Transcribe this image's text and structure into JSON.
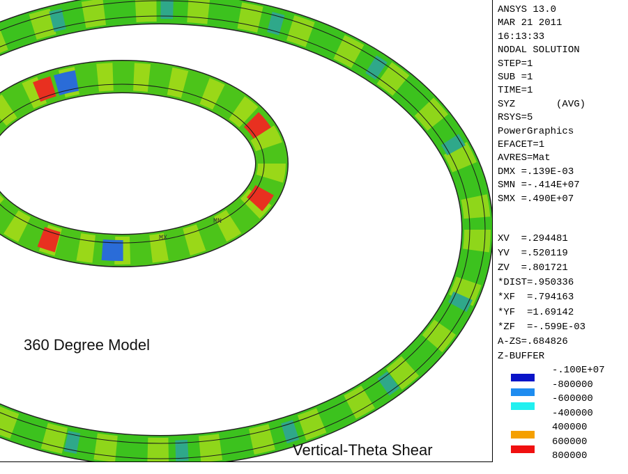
{
  "view": {
    "caption": "360 Degree Model",
    "subtitle": "Vertical-Theta Shear",
    "min_tag": "MN",
    "max_tag": "MX"
  },
  "info": [
    "ANSYS 13.0",
    "MAR 21 2011",
    "16:13:33",
    "NODAL SOLUTION",
    "STEP=1",
    "SUB =1",
    "TIME=1",
    "SYZ       (AVG)",
    "RSYS=5",
    "PowerGraphics",
    "EFACET=1",
    "AVRES=Mat",
    "DMX =.139E-03",
    "SMN =-.414E+07",
    "SMX =.490E+07"
  ],
  "view_params": [
    "XV  =.294481",
    "YV  =.520119",
    "ZV  =.801721",
    "*DIST=.950336",
    "*XF  =.794163",
    "*YF  =1.69142",
    "*ZF  =-.599E-03",
    "A-ZS=.684826",
    "Z-BUFFER"
  ],
  "legend": {
    "labels": [
      "-.100E+07",
      "-800000",
      "-600000",
      "-400000",
      "400000",
      "600000",
      "800000"
    ],
    "colors": [
      "#0a14c8",
      "#1e8cf0",
      "#20f0f0",
      "#ffffff",
      "#f5a000",
      "#f01010"
    ]
  }
}
